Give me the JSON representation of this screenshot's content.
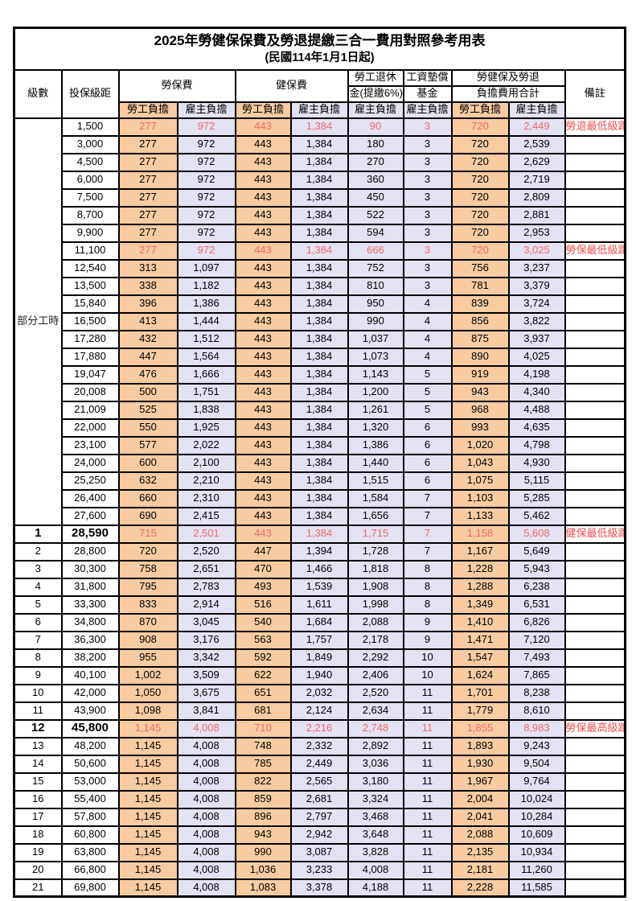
{
  "title": "2025年勞健保保費及勞退提繳三合一費用對照參考用表",
  "subtitle": "(民國114年1月1日起)",
  "header": {
    "level": "級數",
    "bracket": "投保級距",
    "labor_insurance": "勞保費",
    "health_insurance": "健保費",
    "pension_line1": "勞工退休",
    "pension_line2": "金(提繳6%)",
    "wage_fund_line1": "工資墊償",
    "wage_fund_line2": "基金",
    "total_line1": "勞健保及勞退",
    "total_line2": "負擔費用合計",
    "remarks": "備註",
    "employee_burden": "勞工負擔",
    "employer_burden": "雇主負擔"
  },
  "part_time_label": "部分工時",
  "part_time_span": 23,
  "colors": {
    "employee_bg": "#f8cba0",
    "employer_bg": "#e3e2f2",
    "highlight_number_red": "#f06a6a",
    "remark_red": "#f04f4f"
  },
  "rows": [
    {
      "level": null,
      "bracket": "1,500",
      "values": [
        "277",
        "972",
        "443",
        "1,384",
        "90",
        "3",
        "720",
        "2,449"
      ],
      "remark": "勞退最低級距",
      "highlight": true,
      "bold": false
    },
    {
      "level": null,
      "bracket": "3,000",
      "values": [
        "277",
        "972",
        "443",
        "1,384",
        "180",
        "3",
        "720",
        "2,539"
      ],
      "remark": "",
      "highlight": false,
      "bold": false
    },
    {
      "level": null,
      "bracket": "4,500",
      "values": [
        "277",
        "972",
        "443",
        "1,384",
        "270",
        "3",
        "720",
        "2,629"
      ],
      "remark": "",
      "highlight": false,
      "bold": false
    },
    {
      "level": null,
      "bracket": "6,000",
      "values": [
        "277",
        "972",
        "443",
        "1,384",
        "360",
        "3",
        "720",
        "2,719"
      ],
      "remark": "",
      "highlight": false,
      "bold": false
    },
    {
      "level": null,
      "bracket": "7,500",
      "values": [
        "277",
        "972",
        "443",
        "1,384",
        "450",
        "3",
        "720",
        "2,809"
      ],
      "remark": "",
      "highlight": false,
      "bold": false
    },
    {
      "level": null,
      "bracket": "8,700",
      "values": [
        "277",
        "972",
        "443",
        "1,384",
        "522",
        "3",
        "720",
        "2,881"
      ],
      "remark": "",
      "highlight": false,
      "bold": false
    },
    {
      "level": null,
      "bracket": "9,900",
      "values": [
        "277",
        "972",
        "443",
        "1,384",
        "594",
        "3",
        "720",
        "2,953"
      ],
      "remark": "",
      "highlight": false,
      "bold": false
    },
    {
      "level": null,
      "bracket": "11,100",
      "values": [
        "277",
        "972",
        "443",
        "1,384",
        "666",
        "3",
        "720",
        "3,025"
      ],
      "remark": "勞保最低級距",
      "highlight": true,
      "bold": false
    },
    {
      "level": null,
      "bracket": "12,540",
      "values": [
        "313",
        "1,097",
        "443",
        "1,384",
        "752",
        "3",
        "756",
        "3,237"
      ],
      "remark": "",
      "highlight": false,
      "bold": false
    },
    {
      "level": null,
      "bracket": "13,500",
      "values": [
        "338",
        "1,182",
        "443",
        "1,384",
        "810",
        "3",
        "781",
        "3,379"
      ],
      "remark": "",
      "highlight": false,
      "bold": false
    },
    {
      "level": null,
      "bracket": "15,840",
      "values": [
        "396",
        "1,386",
        "443",
        "1,384",
        "950",
        "4",
        "839",
        "3,724"
      ],
      "remark": "",
      "highlight": false,
      "bold": false
    },
    {
      "level": null,
      "bracket": "16,500",
      "values": [
        "413",
        "1,444",
        "443",
        "1,384",
        "990",
        "4",
        "856",
        "3,822"
      ],
      "remark": "",
      "highlight": false,
      "bold": false
    },
    {
      "level": null,
      "bracket": "17,280",
      "values": [
        "432",
        "1,512",
        "443",
        "1,384",
        "1,037",
        "4",
        "875",
        "3,937"
      ],
      "remark": "",
      "highlight": false,
      "bold": false
    },
    {
      "level": null,
      "bracket": "17,880",
      "values": [
        "447",
        "1,564",
        "443",
        "1,384",
        "1,073",
        "4",
        "890",
        "4,025"
      ],
      "remark": "",
      "highlight": false,
      "bold": false
    },
    {
      "level": null,
      "bracket": "19,047",
      "values": [
        "476",
        "1,666",
        "443",
        "1,384",
        "1,143",
        "5",
        "919",
        "4,198"
      ],
      "remark": "",
      "highlight": false,
      "bold": false
    },
    {
      "level": null,
      "bracket": "20,008",
      "values": [
        "500",
        "1,751",
        "443",
        "1,384",
        "1,200",
        "5",
        "943",
        "4,340"
      ],
      "remark": "",
      "highlight": false,
      "bold": false
    },
    {
      "level": null,
      "bracket": "21,009",
      "values": [
        "525",
        "1,838",
        "443",
        "1,384",
        "1,261",
        "5",
        "968",
        "4,488"
      ],
      "remark": "",
      "highlight": false,
      "bold": false
    },
    {
      "level": null,
      "bracket": "22,000",
      "values": [
        "550",
        "1,925",
        "443",
        "1,384",
        "1,320",
        "6",
        "993",
        "4,635"
      ],
      "remark": "",
      "highlight": false,
      "bold": false
    },
    {
      "level": null,
      "bracket": "23,100",
      "values": [
        "577",
        "2,022",
        "443",
        "1,384",
        "1,386",
        "6",
        "1,020",
        "4,798"
      ],
      "remark": "",
      "highlight": false,
      "bold": false
    },
    {
      "level": null,
      "bracket": "24,000",
      "values": [
        "600",
        "2,100",
        "443",
        "1,384",
        "1,440",
        "6",
        "1,043",
        "4,930"
      ],
      "remark": "",
      "highlight": false,
      "bold": false
    },
    {
      "level": null,
      "bracket": "25,250",
      "values": [
        "632",
        "2,210",
        "443",
        "1,384",
        "1,515",
        "6",
        "1,075",
        "5,115"
      ],
      "remark": "",
      "highlight": false,
      "bold": false
    },
    {
      "level": null,
      "bracket": "26,400",
      "values": [
        "660",
        "2,310",
        "443",
        "1,384",
        "1,584",
        "7",
        "1,103",
        "5,285"
      ],
      "remark": "",
      "highlight": false,
      "bold": false
    },
    {
      "level": null,
      "bracket": "27,600",
      "values": [
        "690",
        "2,415",
        "443",
        "1,384",
        "1,656",
        "7",
        "1,133",
        "5,462"
      ],
      "remark": "",
      "highlight": false,
      "bold": false
    },
    {
      "level": "1",
      "bracket": "28,590",
      "values": [
        "715",
        "2,501",
        "443",
        "1,384",
        "1,715",
        "7",
        "1,158",
        "5,608"
      ],
      "remark": "健保最低級距",
      "highlight": true,
      "bold": true
    },
    {
      "level": "2",
      "bracket": "28,800",
      "values": [
        "720",
        "2,520",
        "447",
        "1,394",
        "1,728",
        "7",
        "1,167",
        "5,649"
      ],
      "remark": "",
      "highlight": false,
      "bold": false
    },
    {
      "level": "3",
      "bracket": "30,300",
      "values": [
        "758",
        "2,651",
        "470",
        "1,466",
        "1,818",
        "8",
        "1,228",
        "5,943"
      ],
      "remark": "",
      "highlight": false,
      "bold": false
    },
    {
      "level": "4",
      "bracket": "31,800",
      "values": [
        "795",
        "2,783",
        "493",
        "1,539",
        "1,908",
        "8",
        "1,288",
        "6,238"
      ],
      "remark": "",
      "highlight": false,
      "bold": false
    },
    {
      "level": "5",
      "bracket": "33,300",
      "values": [
        "833",
        "2,914",
        "516",
        "1,611",
        "1,998",
        "8",
        "1,349",
        "6,531"
      ],
      "remark": "",
      "highlight": false,
      "bold": false
    },
    {
      "level": "6",
      "bracket": "34,800",
      "values": [
        "870",
        "3,045",
        "540",
        "1,684",
        "2,088",
        "9",
        "1,410",
        "6,826"
      ],
      "remark": "",
      "highlight": false,
      "bold": false
    },
    {
      "level": "7",
      "bracket": "36,300",
      "values": [
        "908",
        "3,176",
        "563",
        "1,757",
        "2,178",
        "9",
        "1,471",
        "7,120"
      ],
      "remark": "",
      "highlight": false,
      "bold": false
    },
    {
      "level": "8",
      "bracket": "38,200",
      "values": [
        "955",
        "3,342",
        "592",
        "1,849",
        "2,292",
        "10",
        "1,547",
        "7,493"
      ],
      "remark": "",
      "highlight": false,
      "bold": false
    },
    {
      "level": "9",
      "bracket": "40,100",
      "values": [
        "1,002",
        "3,509",
        "622",
        "1,940",
        "2,406",
        "10",
        "1,624",
        "7,865"
      ],
      "remark": "",
      "highlight": false,
      "bold": false
    },
    {
      "level": "10",
      "bracket": "42,000",
      "values": [
        "1,050",
        "3,675",
        "651",
        "2,032",
        "2,520",
        "11",
        "1,701",
        "8,238"
      ],
      "remark": "",
      "highlight": false,
      "bold": false
    },
    {
      "level": "11",
      "bracket": "43,900",
      "values": [
        "1,098",
        "3,841",
        "681",
        "2,124",
        "2,634",
        "11",
        "1,779",
        "8,610"
      ],
      "remark": "",
      "highlight": false,
      "bold": false
    },
    {
      "level": "12",
      "bracket": "45,800",
      "values": [
        "1,145",
        "4,008",
        "710",
        "2,216",
        "2,748",
        "11",
        "1,855",
        "8,983"
      ],
      "remark": "勞保最高級距",
      "highlight": true,
      "bold": true
    },
    {
      "level": "13",
      "bracket": "48,200",
      "values": [
        "1,145",
        "4,008",
        "748",
        "2,332",
        "2,892",
        "11",
        "1,893",
        "9,243"
      ],
      "remark": "",
      "highlight": false,
      "bold": false
    },
    {
      "level": "14",
      "bracket": "50,600",
      "values": [
        "1,145",
        "4,008",
        "785",
        "2,449",
        "3,036",
        "11",
        "1,930",
        "9,504"
      ],
      "remark": "",
      "highlight": false,
      "bold": false
    },
    {
      "level": "15",
      "bracket": "53,000",
      "values": [
        "1,145",
        "4,008",
        "822",
        "2,565",
        "3,180",
        "11",
        "1,967",
        "9,764"
      ],
      "remark": "",
      "highlight": false,
      "bold": false
    },
    {
      "level": "16",
      "bracket": "55,400",
      "values": [
        "1,145",
        "4,008",
        "859",
        "2,681",
        "3,324",
        "11",
        "2,004",
        "10,024"
      ],
      "remark": "",
      "highlight": false,
      "bold": false
    },
    {
      "level": "17",
      "bracket": "57,800",
      "values": [
        "1,145",
        "4,008",
        "896",
        "2,797",
        "3,468",
        "11",
        "2,041",
        "10,284"
      ],
      "remark": "",
      "highlight": false,
      "bold": false
    },
    {
      "level": "18",
      "bracket": "60,800",
      "values": [
        "1,145",
        "4,008",
        "943",
        "2,942",
        "3,648",
        "11",
        "2,088",
        "10,609"
      ],
      "remark": "",
      "highlight": false,
      "bold": false
    },
    {
      "level": "19",
      "bracket": "63,800",
      "values": [
        "1,145",
        "4,008",
        "990",
        "3,087",
        "3,828",
        "11",
        "2,135",
        "10,934"
      ],
      "remark": "",
      "highlight": false,
      "bold": false
    },
    {
      "level": "20",
      "bracket": "66,800",
      "values": [
        "1,145",
        "4,008",
        "1,036",
        "3,233",
        "4,008",
        "11",
        "2,181",
        "11,260"
      ],
      "remark": "",
      "highlight": false,
      "bold": false
    },
    {
      "level": "21",
      "bracket": "69,800",
      "values": [
        "1,145",
        "4,008",
        "1,083",
        "3,378",
        "4,188",
        "11",
        "2,228",
        "11,585"
      ],
      "remark": "",
      "highlight": false,
      "bold": false
    }
  ]
}
